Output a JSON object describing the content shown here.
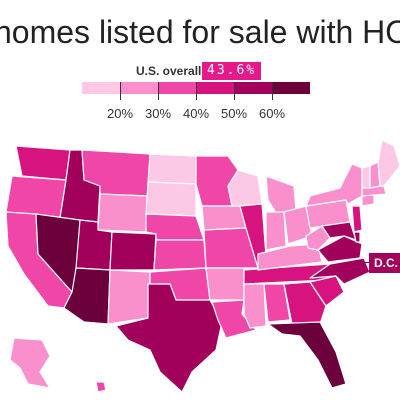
{
  "title": "homes listed for sale with HOA fees",
  "overall": {
    "label": "U.S. overall:",
    "value": "43.6%"
  },
  "legend": {
    "colors": [
      "#fcc8e6",
      "#f98fcd",
      "#f046a8",
      "#d6137f",
      "#a1005b",
      "#6b003c"
    ],
    "ticks": [
      "20%",
      "30%",
      "40%",
      "50%",
      "60%"
    ]
  },
  "dc_label": "D.C.",
  "colors": {
    "accent": "#e6198a",
    "title_text": "#222222"
  }
}
